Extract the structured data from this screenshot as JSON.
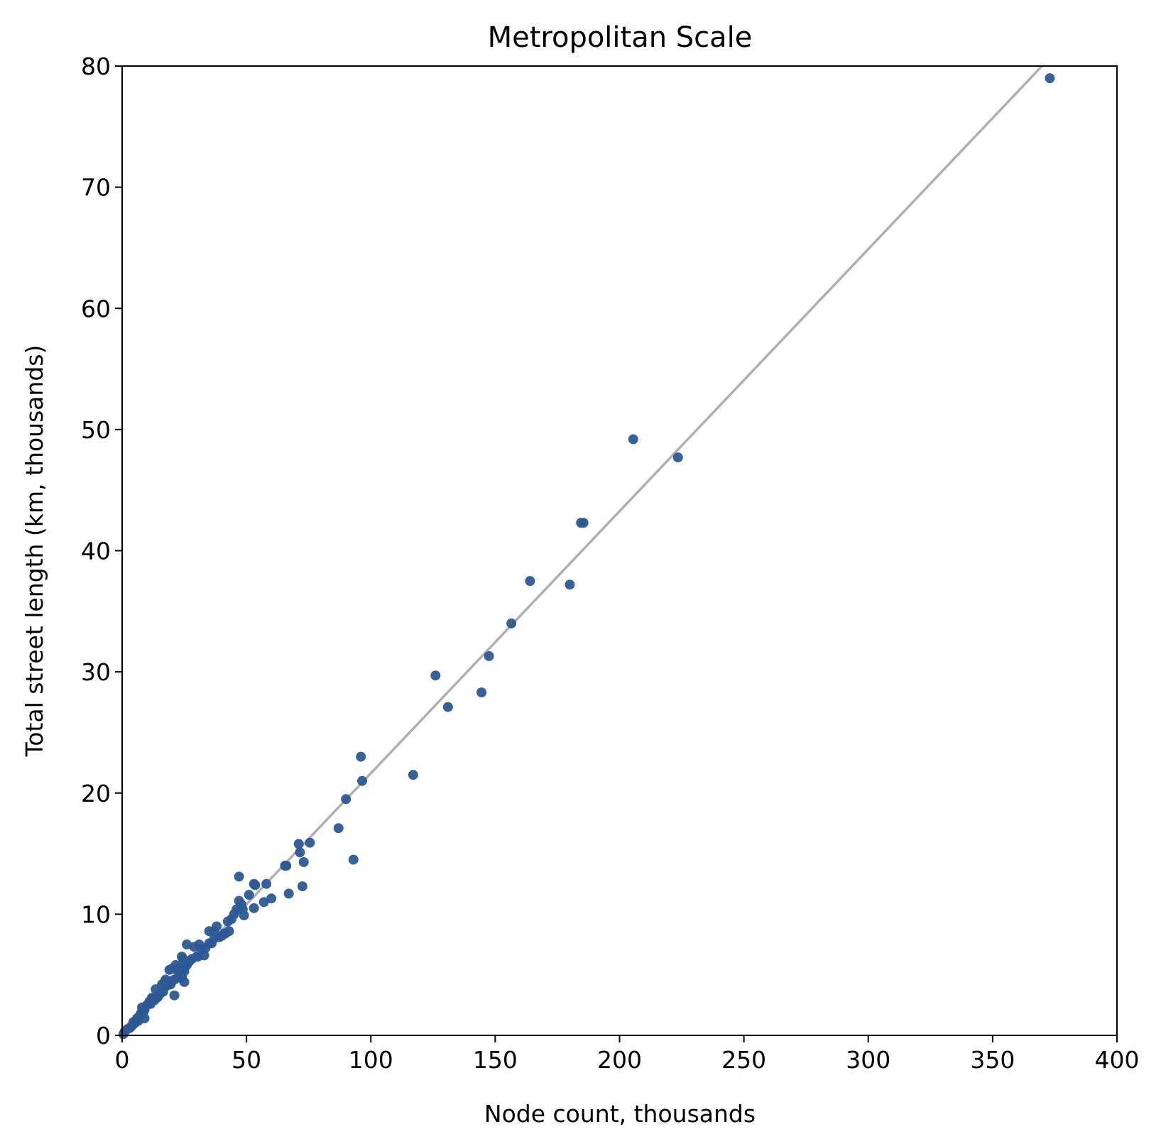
{
  "chart_data": {
    "type": "scatter",
    "title": "Metropolitan Scale",
    "xlabel": "Node count, thousands",
    "ylabel": "Total street length (km, thousands)",
    "xlim": [
      0,
      400
    ],
    "ylim": [
      0,
      80
    ],
    "xticks": [
      "0",
      "50",
      "100",
      "150",
      "200",
      "250",
      "300",
      "350",
      "400"
    ],
    "yticks": [
      "0",
      "10",
      "20",
      "30",
      "40",
      "50",
      "60",
      "70",
      "80"
    ],
    "grid": false,
    "legend": "none",
    "colors": {
      "points": "#2c5a94",
      "trend": "#b0b0b0",
      "axes": "#000000"
    },
    "trend_line": {
      "slope": 0.2163,
      "intercept": 0
    },
    "series": [
      {
        "x": [
          373,
          223.5,
          205.5,
          185.5,
          184.5,
          164,
          180,
          156.5,
          147.5,
          144.5,
          126,
          131,
          117,
          96.5,
          96,
          90,
          87,
          93,
          75.5,
          71,
          71.5,
          73,
          72.5,
          67,
          65.5,
          66,
          47,
          53,
          53.5,
          58,
          51,
          47,
          48,
          48.5,
          46,
          45,
          44,
          42.5,
          41,
          53,
          57,
          60,
          35,
          37,
          38,
          40,
          41.5,
          37,
          33,
          35,
          31,
          30,
          32,
          29,
          28,
          26,
          26,
          24,
          24.5,
          25,
          25,
          24,
          22,
          21,
          20,
          19.5,
          23,
          21,
          24,
          25,
          18,
          17.5,
          16,
          15,
          14,
          13,
          12,
          21.5,
          19,
          17,
          15.5,
          13.5,
          11,
          10,
          9,
          8.5,
          8,
          7,
          6,
          5.5,
          5,
          4,
          3.5,
          3,
          2,
          1,
          0.5,
          9,
          7.5,
          6.5,
          4.5,
          10,
          11.5,
          12.5,
          14.5,
          16.5,
          18.5,
          20,
          22.5,
          23.5,
          27,
          30.5,
          33.5,
          36,
          39,
          43,
          49
        ],
        "y": [
          79,
          47.7,
          49.2,
          42.3,
          42.3,
          37.5,
          37.2,
          34,
          31.3,
          28.3,
          29.7,
          27.1,
          21.5,
          21,
          23,
          19.5,
          17.1,
          14.5,
          15.9,
          15.8,
          15.1,
          14.3,
          12.3,
          11.7,
          14,
          14,
          13.1,
          12.5,
          12.4,
          12.5,
          11.6,
          11.1,
          10.8,
          10.4,
          10.4,
          10,
          9.6,
          9.4,
          8.4,
          10.5,
          11,
          11.3,
          8.6,
          8.6,
          9,
          8.2,
          8.4,
          8,
          6.6,
          7.6,
          7.5,
          6.5,
          7.1,
          7.3,
          6.3,
          7.5,
          5.8,
          6.5,
          6.3,
          5.5,
          4.4,
          4.7,
          5.4,
          4.6,
          5.5,
          4.2,
          5.1,
          3.3,
          4.9,
          5.3,
          4.1,
          4.6,
          4.2,
          3.4,
          3.1,
          2.9,
          3.1,
          5.8,
          5.4,
          4.4,
          3.5,
          3.8,
          2.8,
          2.5,
          2.1,
          1.9,
          2.3,
          1.6,
          1.4,
          1.1,
          1,
          0.8,
          0.7,
          0.6,
          0.5,
          0.3,
          0.1,
          1.4,
          1.8,
          1.2,
          1.1,
          2.5,
          2.6,
          3,
          3.2,
          3.6,
          4.3,
          4.5,
          4.8,
          5.6,
          6.1,
          6.5,
          7.2,
          7.6,
          8.1,
          8.6,
          9.9
        ]
      }
    ]
  }
}
